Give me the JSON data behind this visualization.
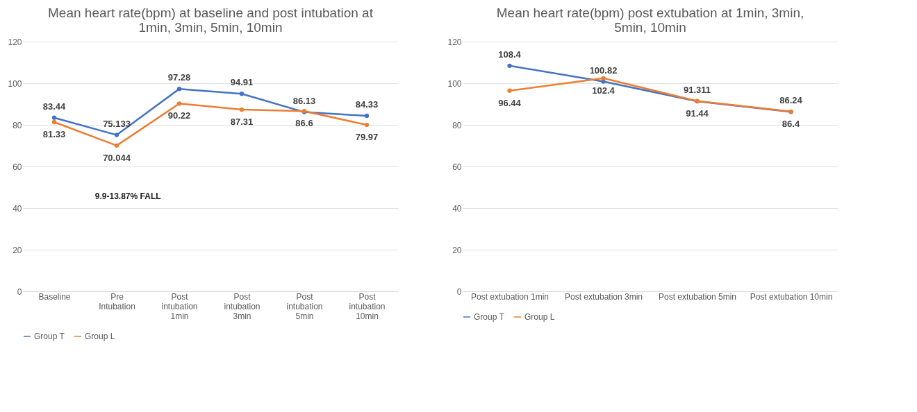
{
  "chart_data": [
    {
      "type": "line",
      "title": "Mean heart rate(bpm) at baseline and post intubation at 1min, 3min, 5min, 10min",
      "categories": [
        "Baseline",
        "Pre Intubation",
        "Post intubation 1min",
        "Post intubation 3min",
        "Post intubation 5min",
        "Post intubation 10min"
      ],
      "series": [
        {
          "name": "Group T",
          "color": "#4472c4",
          "values": [
            83.44,
            75.133,
            97.28,
            94.91,
            86.13,
            84.33
          ]
        },
        {
          "name": "Group L",
          "color": "#ed7d31",
          "values": [
            81.33,
            70.044,
            90.22,
            87.31,
            86.6,
            79.97
          ]
        }
      ],
      "ylim": [
        0,
        120
      ],
      "yticks": [
        0,
        20,
        40,
        60,
        80,
        100,
        120
      ],
      "grid": "y",
      "legend": "bottom",
      "marker": "circle",
      "data_labels": true,
      "annotations": [
        "9.9-13.87% FALL"
      ]
    },
    {
      "type": "line",
      "title": "Mean heart rate(bpm) post extubation at 1min, 3min, 5min, 10min",
      "categories": [
        "Post extubation 1min",
        "Post extubation 3min",
        "Post extubation 5min",
        "Post extubation 10min"
      ],
      "series": [
        {
          "name": "Group T",
          "color": "#4472c4",
          "values": [
            108.4,
            100.82,
            91.311,
            86.24
          ]
        },
        {
          "name": "Group L",
          "color": "#ed7d31",
          "values": [
            96.44,
            102.4,
            91.44,
            86.4
          ]
        }
      ],
      "ylim": [
        0,
        120
      ],
      "yticks": [
        0,
        20,
        40,
        60,
        80,
        100,
        120
      ],
      "grid": "y",
      "legend": "bottom",
      "marker": "circle",
      "data_labels": true
    }
  ]
}
